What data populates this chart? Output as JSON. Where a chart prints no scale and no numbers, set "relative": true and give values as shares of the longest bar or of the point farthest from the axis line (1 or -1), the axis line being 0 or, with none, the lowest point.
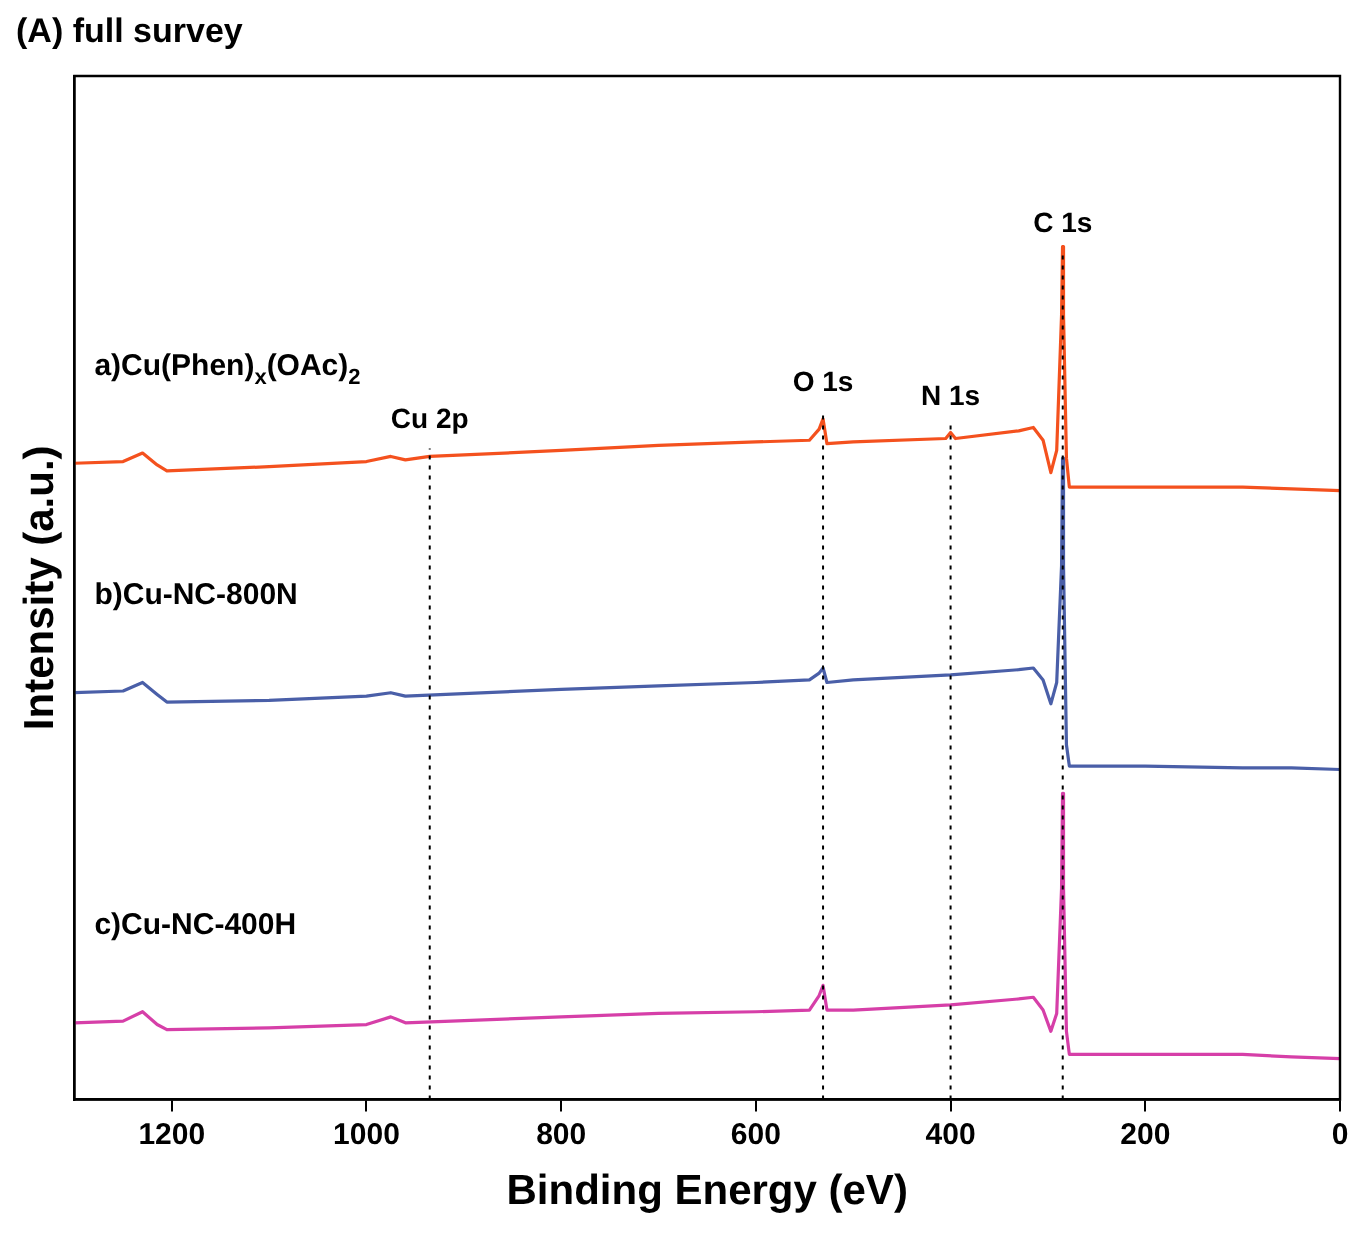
{
  "chart_data": {
    "type": "line",
    "title": "(A) full survey",
    "xlabel": "Binding Energy (eV)",
    "ylabel": "Intensity (a.u.)",
    "relative": true,
    "legend": false,
    "marker": "none",
    "line_style": "solid",
    "grid": false,
    "tick_labels": "x",
    "xlim": [
      1300,
      0
    ],
    "xticks": [
      1200,
      1000,
      800,
      600,
      400,
      200,
      0
    ],
    "series": [
      {
        "name": "a)Cu(Phen)$_{x}$(OAc)$_{2}$",
        "color": "#f4511e",
        "x": [
          1300,
          1250,
          1230,
          1215,
          1205,
          1100,
          1000,
          975,
          960,
          935,
          800,
          700,
          600,
          545,
          535,
          531,
          527,
          500,
          405,
          400,
          395,
          330,
          315,
          305,
          297,
          291,
          286,
          285,
          284,
          281,
          278,
          200,
          100,
          50,
          0
        ],
        "values": [
          0.746,
          0.748,
          0.758,
          0.744,
          0.737,
          0.742,
          0.748,
          0.754,
          0.75,
          0.754,
          0.761,
          0.767,
          0.771,
          0.773,
          0.786,
          0.798,
          0.769,
          0.771,
          0.775,
          0.782,
          0.775,
          0.784,
          0.788,
          0.773,
          0.735,
          0.761,
          0.92,
          1.0,
          0.92,
          0.752,
          0.718,
          0.718,
          0.718,
          0.716,
          0.714
        ]
      },
      {
        "name": "b)Cu-NC-800N",
        "color": "#4a5fa8",
        "x": [
          1300,
          1250,
          1230,
          1215,
          1205,
          1100,
          1000,
          975,
          960,
          800,
          700,
          600,
          545,
          535,
          531,
          527,
          500,
          400,
          330,
          315,
          305,
          297,
          291,
          286,
          285,
          284,
          281,
          278,
          200,
          100,
          50,
          0
        ],
        "values": [
          0.477,
          0.479,
          0.489,
          0.475,
          0.466,
          0.468,
          0.473,
          0.477,
          0.473,
          0.481,
          0.485,
          0.489,
          0.492,
          0.5,
          0.506,
          0.489,
          0.492,
          0.498,
          0.504,
          0.506,
          0.492,
          0.464,
          0.489,
          0.626,
          0.752,
          0.626,
          0.416,
          0.391,
          0.391,
          0.389,
          0.389,
          0.387
        ]
      },
      {
        "name": "c)Cu-NC-400H",
        "color": "#d63fa8",
        "x": [
          1300,
          1250,
          1230,
          1215,
          1205,
          1100,
          1000,
          975,
          960,
          800,
          700,
          600,
          545,
          535,
          531,
          527,
          500,
          400,
          330,
          315,
          305,
          297,
          291,
          286,
          285,
          284,
          281,
          278,
          200,
          100,
          50,
          0
        ],
        "values": [
          0.09,
          0.092,
          0.103,
          0.088,
          0.082,
          0.084,
          0.088,
          0.097,
          0.09,
          0.097,
          0.101,
          0.103,
          0.105,
          0.122,
          0.134,
          0.105,
          0.105,
          0.111,
          0.118,
          0.12,
          0.105,
          0.08,
          0.101,
          0.248,
          0.359,
          0.248,
          0.08,
          0.053,
          0.053,
          0.053,
          0.05,
          0.048
        ]
      }
    ],
    "ref_lines": [
      {
        "axis": "x",
        "value": 935,
        "label": "Cu 2p",
        "color": "#000000",
        "line_style": "dotted"
      },
      {
        "axis": "x",
        "value": 531,
        "label": "O 1s",
        "color": "#000000",
        "line_style": "dotted"
      },
      {
        "axis": "x",
        "value": 400,
        "label": "N 1s",
        "color": "#000000",
        "line_style": "dotted"
      },
      {
        "axis": "x",
        "value": 284.8,
        "label": "C 1s",
        "color": "#000000",
        "line_style": "dotted"
      }
    ]
  }
}
